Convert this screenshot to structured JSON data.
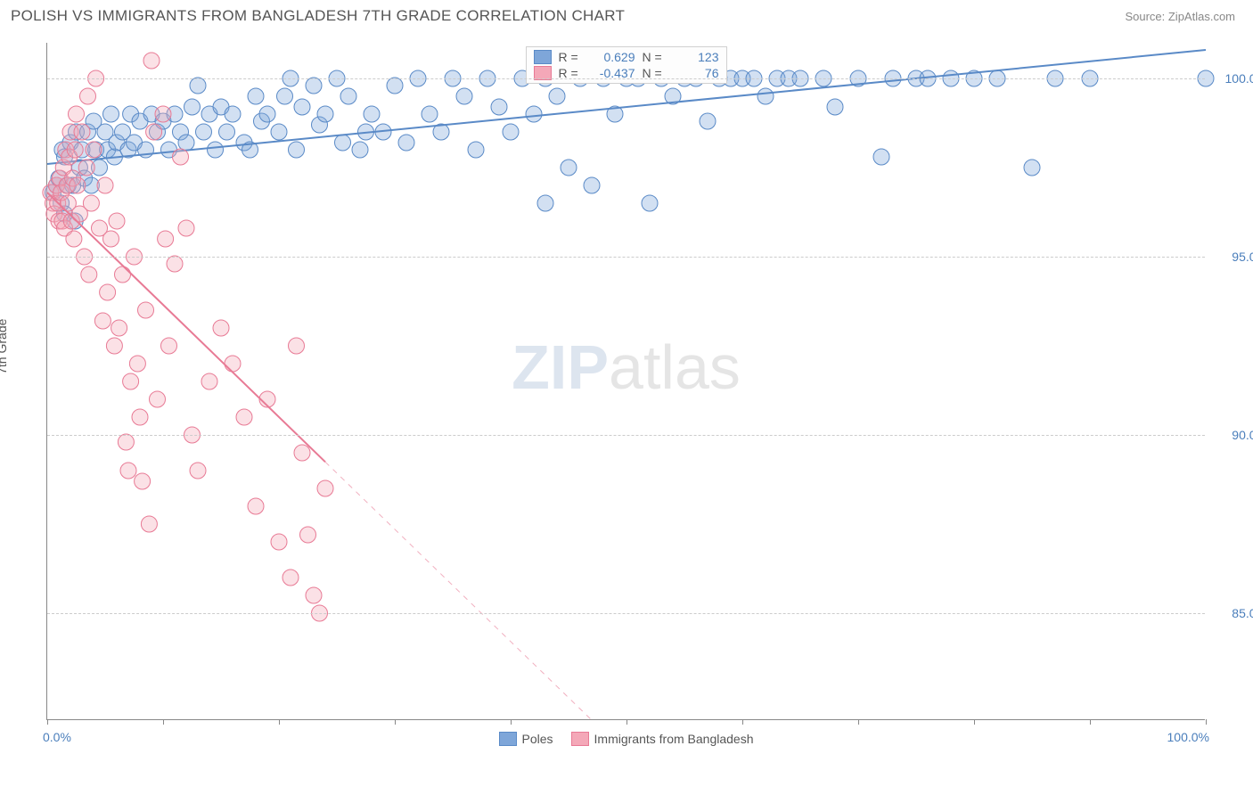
{
  "header": {
    "title": "POLISH VS IMMIGRANTS FROM BANGLADESH 7TH GRADE CORRELATION CHART",
    "source_label": "Source: ZipAtlas.com"
  },
  "chart": {
    "type": "scatter",
    "ylabel": "7th Grade",
    "xlim": [
      0,
      100
    ],
    "ylim": [
      82,
      101
    ],
    "xtick_positions": [
      0,
      10,
      20,
      30,
      40,
      50,
      60,
      70,
      80,
      90,
      100
    ],
    "xtick_labels": {
      "left": "0.0%",
      "right": "100.0%"
    },
    "ytick_positions": [
      85,
      90,
      95,
      100
    ],
    "ytick_labels": [
      "85.0%",
      "90.0%",
      "95.0%",
      "100.0%"
    ],
    "grid_color": "#cccccc",
    "background_color": "#ffffff",
    "marker_radius": 9,
    "marker_opacity": 0.35,
    "line_width": 2,
    "watermark": {
      "prefix": "ZIP",
      "suffix": "atlas"
    },
    "series": [
      {
        "name": "Poles",
        "color": "#7ea6d9",
        "stroke": "#5a8ac7",
        "R": "0.629",
        "N": "123",
        "trend": {
          "x1": 0,
          "y1": 97.6,
          "x2": 100,
          "y2": 100.8,
          "solid_until_x": 100
        },
        "points": [
          [
            0.5,
            96.8
          ],
          [
            0.8,
            97.0
          ],
          [
            1.0,
            97.2
          ],
          [
            1.2,
            96.5
          ],
          [
            1.3,
            98.0
          ],
          [
            1.5,
            96.2
          ],
          [
            1.5,
            97.8
          ],
          [
            1.8,
            97.0
          ],
          [
            2.0,
            98.2
          ],
          [
            2.2,
            97.0
          ],
          [
            2.4,
            96.0
          ],
          [
            2.5,
            98.5
          ],
          [
            2.8,
            97.5
          ],
          [
            3.0,
            98.0
          ],
          [
            3.2,
            97.2
          ],
          [
            3.5,
            98.5
          ],
          [
            3.8,
            97.0
          ],
          [
            4.0,
            98.8
          ],
          [
            4.2,
            98.0
          ],
          [
            4.5,
            97.5
          ],
          [
            5.0,
            98.5
          ],
          [
            5.2,
            98.0
          ],
          [
            5.5,
            99.0
          ],
          [
            5.8,
            97.8
          ],
          [
            6.0,
            98.2
          ],
          [
            6.5,
            98.5
          ],
          [
            7.0,
            98.0
          ],
          [
            7.2,
            99.0
          ],
          [
            7.5,
            98.2
          ],
          [
            8.0,
            98.8
          ],
          [
            8.5,
            98.0
          ],
          [
            9.0,
            99.0
          ],
          [
            9.5,
            98.5
          ],
          [
            10,
            98.8
          ],
          [
            10.5,
            98.0
          ],
          [
            11,
            99.0
          ],
          [
            11.5,
            98.5
          ],
          [
            12,
            98.2
          ],
          [
            12.5,
            99.2
          ],
          [
            13,
            99.8
          ],
          [
            13.5,
            98.5
          ],
          [
            14,
            99.0
          ],
          [
            14.5,
            98.0
          ],
          [
            15,
            99.2
          ],
          [
            15.5,
            98.5
          ],
          [
            16,
            99.0
          ],
          [
            17,
            98.2
          ],
          [
            17.5,
            98.0
          ],
          [
            18,
            99.5
          ],
          [
            18.5,
            98.8
          ],
          [
            19,
            99.0
          ],
          [
            20,
            98.5
          ],
          [
            20.5,
            99.5
          ],
          [
            21,
            100.0
          ],
          [
            21.5,
            98.0
          ],
          [
            22,
            99.2
          ],
          [
            23,
            99.8
          ],
          [
            23.5,
            98.7
          ],
          [
            24,
            99.0
          ],
          [
            25,
            100.0
          ],
          [
            25.5,
            98.2
          ],
          [
            26,
            99.5
          ],
          [
            27,
            98.0
          ],
          [
            27.5,
            98.5
          ],
          [
            28,
            99.0
          ],
          [
            29,
            98.5
          ],
          [
            30,
            99.8
          ],
          [
            31,
            98.2
          ],
          [
            32,
            100.0
          ],
          [
            33,
            99.0
          ],
          [
            34,
            98.5
          ],
          [
            35,
            100.0
          ],
          [
            36,
            99.5
          ],
          [
            37,
            98.0
          ],
          [
            38,
            100.0
          ],
          [
            39,
            99.2
          ],
          [
            40,
            98.5
          ],
          [
            41,
            100.0
          ],
          [
            42,
            99.0
          ],
          [
            43,
            100.0
          ],
          [
            43,
            96.5
          ],
          [
            44,
            99.5
          ],
          [
            45,
            97.5
          ],
          [
            46,
            100.0
          ],
          [
            47,
            97.0
          ],
          [
            48,
            100.0
          ],
          [
            49,
            99.0
          ],
          [
            50,
            100.0
          ],
          [
            51,
            100.0
          ],
          [
            52,
            96.5
          ],
          [
            53,
            100.0
          ],
          [
            54,
            99.5
          ],
          [
            55,
            100.0
          ],
          [
            56,
            100.0
          ],
          [
            57,
            98.8
          ],
          [
            58,
            100.0
          ],
          [
            59,
            100.0
          ],
          [
            60,
            100.0
          ],
          [
            61,
            100.0
          ],
          [
            62,
            99.5
          ],
          [
            63,
            100.0
          ],
          [
            64,
            100.0
          ],
          [
            65,
            100.0
          ],
          [
            67,
            100.0
          ],
          [
            68,
            99.2
          ],
          [
            70,
            100.0
          ],
          [
            72,
            97.8
          ],
          [
            73,
            100.0
          ],
          [
            75,
            100.0
          ],
          [
            76,
            100.0
          ],
          [
            78,
            100.0
          ],
          [
            80,
            100.0
          ],
          [
            82,
            100.0
          ],
          [
            85,
            97.5
          ],
          [
            87,
            100.0
          ],
          [
            90,
            100.0
          ],
          [
            100,
            100.0
          ]
        ]
      },
      {
        "name": "Immigrants from Bangladesh",
        "color": "#f4a8b8",
        "stroke": "#e87a95",
        "R": "-0.437",
        "N": "76",
        "trend": {
          "x1": 0,
          "y1": 96.8,
          "x2": 47,
          "y2": 82.0,
          "solid_until_x": 24
        },
        "points": [
          [
            0.3,
            96.8
          ],
          [
            0.5,
            96.5
          ],
          [
            0.6,
            96.2
          ],
          [
            0.8,
            97.0
          ],
          [
            0.9,
            96.5
          ],
          [
            1.0,
            96.0
          ],
          [
            1.1,
            97.2
          ],
          [
            1.2,
            96.8
          ],
          [
            1.3,
            96.0
          ],
          [
            1.4,
            97.5
          ],
          [
            1.5,
            95.8
          ],
          [
            1.6,
            98.0
          ],
          [
            1.7,
            97.0
          ],
          [
            1.8,
            96.5
          ],
          [
            1.9,
            97.8
          ],
          [
            2.0,
            98.5
          ],
          [
            2.1,
            96.0
          ],
          [
            2.2,
            97.2
          ],
          [
            2.3,
            95.5
          ],
          [
            2.4,
            98.0
          ],
          [
            2.5,
            99.0
          ],
          [
            2.6,
            97.0
          ],
          [
            2.8,
            96.2
          ],
          [
            3.0,
            98.5
          ],
          [
            3.2,
            95.0
          ],
          [
            3.4,
            97.5
          ],
          [
            3.5,
            99.5
          ],
          [
            3.6,
            94.5
          ],
          [
            3.8,
            96.5
          ],
          [
            4.0,
            98.0
          ],
          [
            4.2,
            100.0
          ],
          [
            4.5,
            95.8
          ],
          [
            4.8,
            93.2
          ],
          [
            5.0,
            97.0
          ],
          [
            5.2,
            94.0
          ],
          [
            5.5,
            95.5
          ],
          [
            5.8,
            92.5
          ],
          [
            6.0,
            96.0
          ],
          [
            6.2,
            93.0
          ],
          [
            6.5,
            94.5
          ],
          [
            6.8,
            89.8
          ],
          [
            7.0,
            89.0
          ],
          [
            7.2,
            91.5
          ],
          [
            7.5,
            95.0
          ],
          [
            7.8,
            92.0
          ],
          [
            8.0,
            90.5
          ],
          [
            8.2,
            88.7
          ],
          [
            8.5,
            93.5
          ],
          [
            8.8,
            87.5
          ],
          [
            9.0,
            100.5
          ],
          [
            9.2,
            98.5
          ],
          [
            9.5,
            91.0
          ],
          [
            10,
            99.0
          ],
          [
            10.2,
            95.5
          ],
          [
            10.5,
            92.5
          ],
          [
            11,
            94.8
          ],
          [
            11.5,
            97.8
          ],
          [
            12,
            95.8
          ],
          [
            12.5,
            90.0
          ],
          [
            13,
            89.0
          ],
          [
            14,
            91.5
          ],
          [
            15,
            93.0
          ],
          [
            16,
            92.0
          ],
          [
            17,
            90.5
          ],
          [
            18,
            88.0
          ],
          [
            19,
            91.0
          ],
          [
            20,
            87.0
          ],
          [
            21,
            86.0
          ],
          [
            21.5,
            92.5
          ],
          [
            22,
            89.5
          ],
          [
            22.5,
            87.2
          ],
          [
            23,
            85.5
          ],
          [
            23.5,
            85.0
          ],
          [
            24,
            88.5
          ]
        ]
      }
    ],
    "legend_bottom": [
      {
        "label": "Poles",
        "color": "#7ea6d9",
        "stroke": "#5a8ac7"
      },
      {
        "label": "Immigrants from Bangladesh",
        "color": "#f4a8b8",
        "stroke": "#e87a95"
      }
    ]
  }
}
